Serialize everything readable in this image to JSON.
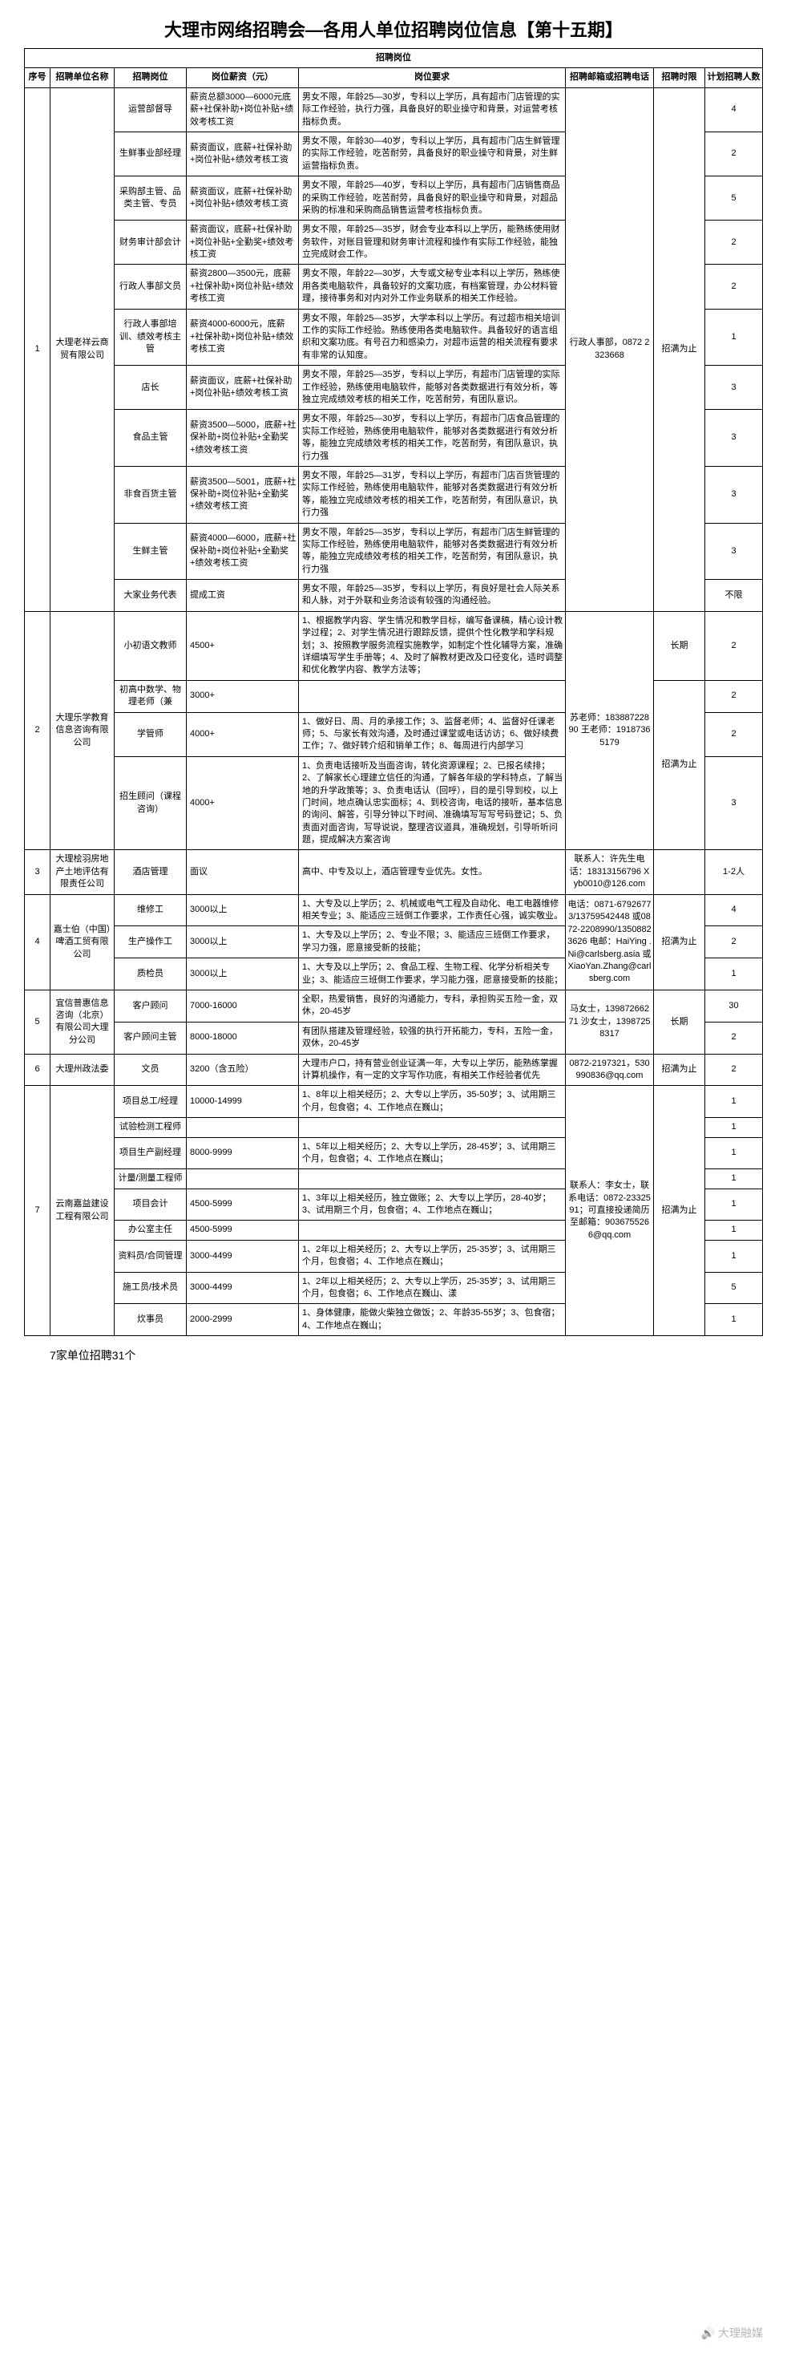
{
  "title": "大理市网络招聘会—各用人单位招聘岗位信息【第十五期】",
  "section_header": "招聘岗位",
  "headers": {
    "seq": "序号",
    "company": "招聘单位名称",
    "job": "招聘岗位",
    "salary": "岗位薪资（元）",
    "req": "岗位要求",
    "contact": "招聘邮箱或招聘电话",
    "limit": "招聘时限",
    "count": "计划招聘人数"
  },
  "companies": [
    {
      "seq": "1",
      "name": "大理老祥云商贸有限公司",
      "contact": "行政人事部，0872 2323668",
      "limit": "招满为止",
      "jobs": [
        {
          "job": "运营部督导",
          "salary": "薪资总额3000—6000元底薪+社保补助+岗位补贴+绩效考核工资",
          "req": "男女不限，年龄25—30岁，专科以上学历，具有超市门店管理的实际工作经验，执行力强，具备良好的职业操守和背景，对运营考核指标负责。",
          "count": "4"
        },
        {
          "job": "生鲜事业部经理",
          "salary": "薪资面议，底薪+社保补助+岗位补贴+绩效考核工资",
          "req": "男女不限，年龄30—40岁，专科以上学历，具有超市门店生鲜管理的实际工作经验，吃苦耐劳，具备良好的职业操守和背景，对生鲜运营指标负责。",
          "count": "2"
        },
        {
          "job": "采购部主管、品类主管、专员",
          "salary": "薪资面议，底薪+社保补助+岗位补贴+绩效考核工资",
          "req": "男女不限，年龄25—40岁，专科以上学历，具有超市门店销售商品的采购工作经验，吃苦耐劳，具备良好的职业操守和背景，对超品采购的标准和采购商品销售运营考核指标负责。",
          "count": "5"
        },
        {
          "job": "财务审计部会计",
          "salary": "薪资面议，底薪+社保补助+岗位补贴+全勤奖+绩效考核工资",
          "req": "男女不限，年龄25—35岁，财会专业本科以上学历，能熟练使用财务软件，对账目管理和财务审计流程和操作有实际工作经验，能独立完成财会工作。",
          "count": "2"
        },
        {
          "job": "行政人事部文员",
          "salary": "薪资2800—3500元，底薪+社保补助+岗位补贴+绩效考核工资",
          "req": "男女不限，年龄22—30岁，大专或文秘专业本科以上学历，熟练使用各类电脑软件，具备较好的文案功底，有档案管理，办公材料管理，接待事务和对内对外工作业务联系的相关工作经验。",
          "count": "2"
        },
        {
          "job": "行政人事部培训、绩效考核主管",
          "salary": "薪资4000-6000元，底薪+社保补助+岗位补贴+绩效考核工资",
          "req": "男女不限，年龄25—35岁，大学本科以上学历。有过超市相关培训工作的实际工作经验。熟练使用各类电脑软件。具备较好的语言组织和文案功底。有号召力和感染力，对超市运营的相关流程有要求有非常的认知度。",
          "count": "1"
        },
        {
          "job": "店长",
          "salary": "薪资面议，底薪+社保补助+岗位补贴+绩效考核工资",
          "req": "男女不限，年龄25—35岁，专科以上学历，有超市门店管理的实际工作经验，熟练使用电脑软件，能够对各类数据进行有效分析，等独立完成绩效考核的相关工作，吃苦耐劳，有团队意识。",
          "count": "3"
        },
        {
          "job": "食品主管",
          "salary": "薪资3500—5000，底薪+社保补助+岗位补贴+全勤奖+绩效考核工资",
          "req": "男女不限，年龄25—30岁，专科以上学历，有超市门店食品管理的实际工作经验，熟练使用电脑软件，能够对各类数据进行有效分析等，能独立完成绩效考核的相关工作，吃苦耐劳，有团队意识，执行力强",
          "count": "3"
        },
        {
          "job": "非食百货主管",
          "salary": "薪资3500—5001，底薪+社保补助+岗位补贴+全勤奖+绩效考核工资",
          "req": "男女不限，年龄25—31岁，专科以上学历，有超市门店百货管理的实际工作经验，熟练使用电脑软件，能够对各类数据进行有效分析等，能独立完成绩效考核的相关工作，吃苦耐劳，有团队意识，执行力强",
          "count": "3"
        },
        {
          "job": "生鲜主管",
          "salary": "薪资4000—6000，底薪+社保补助+岗位补贴+全勤奖+绩效考核工资",
          "req": "男女不限，年龄25—35岁，专科以上学历，有超市门店生鲜管理的实际工作经验，熟练使用电脑软件，能够对各类数据进行有效分析等，能独立完成绩效考核的相关工作，吃苦耐劳，有团队意识，执行力强",
          "count": "3"
        },
        {
          "job": "大家业务代表",
          "salary": "提成工资",
          "req": "男女不限，年龄25—35岁，专科以上学历，有良好是社会人际关系和人脉，对于外联和业务洽谈有较强的沟通经验。",
          "count": "不限"
        }
      ]
    },
    {
      "seq": "2",
      "name": "大理乐学教育信息咨询有限公司",
      "contact": "苏老师：18388722890 王老师：19187365179",
      "limit": "招满为止",
      "jobs": [
        {
          "job": "小初语文教师",
          "salary": "4500+",
          "req": "1、根据教学内容、学生情况和教学目标，编写备课稿，精心设计教学过程；2、对学生情况进行跟踪反馈，提供个性化教学和学科规划；3、按照教学服务流程实施教学，如制定个性化辅导方案，准确详细填写学生手册等；4、及时了解教材更改及口径变化，适时调整和优化教学内容、教学方法等；",
          "count": "2",
          "limit": "长期"
        },
        {
          "job": "初高中数学、物理老师（兼",
          "salary": "3000+",
          "req": "",
          "count": "2"
        },
        {
          "job": "学管师",
          "salary": "4000+",
          "req": "1、做好日、周、月的承接工作；3、监督老师；4、监督好任课老师；5、与家长有效沟通，及时通过课堂或电话访访；6、做好续费工作；7、做好转介绍和销单工作；8、每周进行内部学习",
          "count": "2"
        },
        {
          "job": "招生顾问（课程咨询）",
          "salary": "4000+",
          "req": "1、负责电话接听及当面咨询，转化资源课程；2、已报名续排；2、了解家长心理建立信任的沟通，了解各年级的学科特点，了解当地的升学政策等；3、负责电话认（回呼），目的是引导到校，以上门时间，地点确认忠实面标；4、到校咨询，电话的接听，基本信息的询问、解答，引导分钟以下时间、准确填写写写号码登记；5、负责面对面咨询，写导说说，整理咨议道具，准确规划，引导听听问题，提成解决方案咨询",
          "count": "3"
        }
      ]
    },
    {
      "seq": "3",
      "name": "大理桧羽房地产土地评估有限责任公司",
      "contact": "联系人：许先生电话：18313156796 Xyb0010@126.com",
      "limit": "",
      "jobs": [
        {
          "job": "酒店管理",
          "salary": "面议",
          "req": "高中、中专及以上，酒店管理专业优先。女性。",
          "count": "1-2人"
        }
      ]
    },
    {
      "seq": "4",
      "name": "嘉士伯（中国）啤酒工贸有限公司",
      "contact": "电话：0871-67926773/13759542448 或0872-2208990/13508823626\n电邮：HaiYing .Ni@carlsberg.asia 或 XiaoYan.Zhang@carlsberg.com",
      "limit": "招满为止",
      "jobs": [
        {
          "job": "维修工",
          "salary": "3000以上",
          "req": "1、大专及以上学历；2、机械或电气工程及自动化、电工电器维修相关专业；3、能适应三班倒工作要求，工作责任心强，诚实敬业。",
          "count": "4"
        },
        {
          "job": "生产操作工",
          "salary": "3000以上",
          "req": "1、大专及以上学历；2、专业不限；3、能适应三班倒工作要求，学习力强，愿意接受新的技能；",
          "count": "2"
        },
        {
          "job": "质检员",
          "salary": "3000以上",
          "req": "1、大专及以上学历；2、食品工程、生物工程、化学分析相关专业；3、能适应三班倒工作要求，学习能力强，愿意接受新的技能；",
          "count": "1"
        }
      ]
    },
    {
      "seq": "5",
      "name": "宜信普惠信息咨询（北京）有限公司大理分公司",
      "contact": "马女士，13987266271 沙女士，13987258317",
      "limit": "长期",
      "jobs": [
        {
          "job": "客户顾问",
          "salary": "7000-16000",
          "req": "全职，热爱销售，良好的沟通能力，专科，承担购买五险一金，双休，20-45岁",
          "count": "30"
        },
        {
          "job": "客户顾问主管",
          "salary": "8000-18000",
          "req": "有团队搭建及管理经验，较强的执行开拓能力，专科，五险一金，双休，20-45岁",
          "count": "2"
        }
      ]
    },
    {
      "seq": "6",
      "name": "大理州政法委",
      "contact": "0872-2197321，530990836@qq.com",
      "limit": "招满为止",
      "jobs": [
        {
          "job": "文员",
          "salary": "3200（含五险）",
          "req": "大理市户口，持有营业创业证满一年，大专以上学历，能熟练掌握计算机操作，有一定的文字写作功底，有相关工作经验者优先",
          "count": "2"
        }
      ]
    },
    {
      "seq": "7",
      "name": "云南嘉益建设工程有限公司",
      "contact": "联系人：李女士，联系电话：0872-2332591；可直接投递简历至邮箱：9036755266@qq.com",
      "limit": "招满为止",
      "jobs": [
        {
          "job": "项目总工/经理",
          "salary": "10000-14999",
          "req": "1、8年以上相关经历；2、大专以上学历，35-50岁；3、试用期三个月，包食宿；4、工作地点在巍山；",
          "count": "1"
        },
        {
          "job": "试验检测工程师",
          "salary": "",
          "req": "",
          "count": "1",
          "share": "a"
        },
        {
          "job": "项目生产副经理",
          "salary": "8000-9999",
          "req": "1、5年以上相关经历；2、大专以上学历，28-45岁；3、试用期三个月，包食宿；4、工作地点在巍山；",
          "count": "1",
          "share": "a"
        },
        {
          "job": "计量/测量工程师",
          "salary": "",
          "req": "",
          "count": "1",
          "share": "a"
        },
        {
          "job": "项目会计",
          "salary": "4500-5999",
          "req": "1、3年以上相关经历，独立做账；2、大专以上学历，28-40岁；3、试用期三个月，包食宿；4、工作地点在巍山；",
          "count": "1"
        },
        {
          "job": "办公室主任",
          "salary": "4500-5999",
          "req": "",
          "count": "1"
        },
        {
          "job": "资料员/合同管理",
          "salary": "3000-4499",
          "req": "1、2年以上相关经历；2、大专以上学历，25-35岁；3、试用期三个月，包食宿；4、工作地点在巍山；",
          "count": "1"
        },
        {
          "job": "施工员/技术员",
          "salary": "3000-4499",
          "req": "1、2年以上相关经历；2、大专以上学历，25-35岁；3、试用期三个月，包食宿；6、工作地点在巍山、漾",
          "count": "5"
        },
        {
          "job": "炊事员",
          "salary": "2000-2999",
          "req": "1、身体健康，能做火柴独立做饭；2、年龄35-55岁；3、包食宿；4、工作地点在巍山；",
          "count": "1"
        }
      ]
    }
  ],
  "footer": "7家单位招聘31个",
  "watermark": "🔊 大理融媒"
}
